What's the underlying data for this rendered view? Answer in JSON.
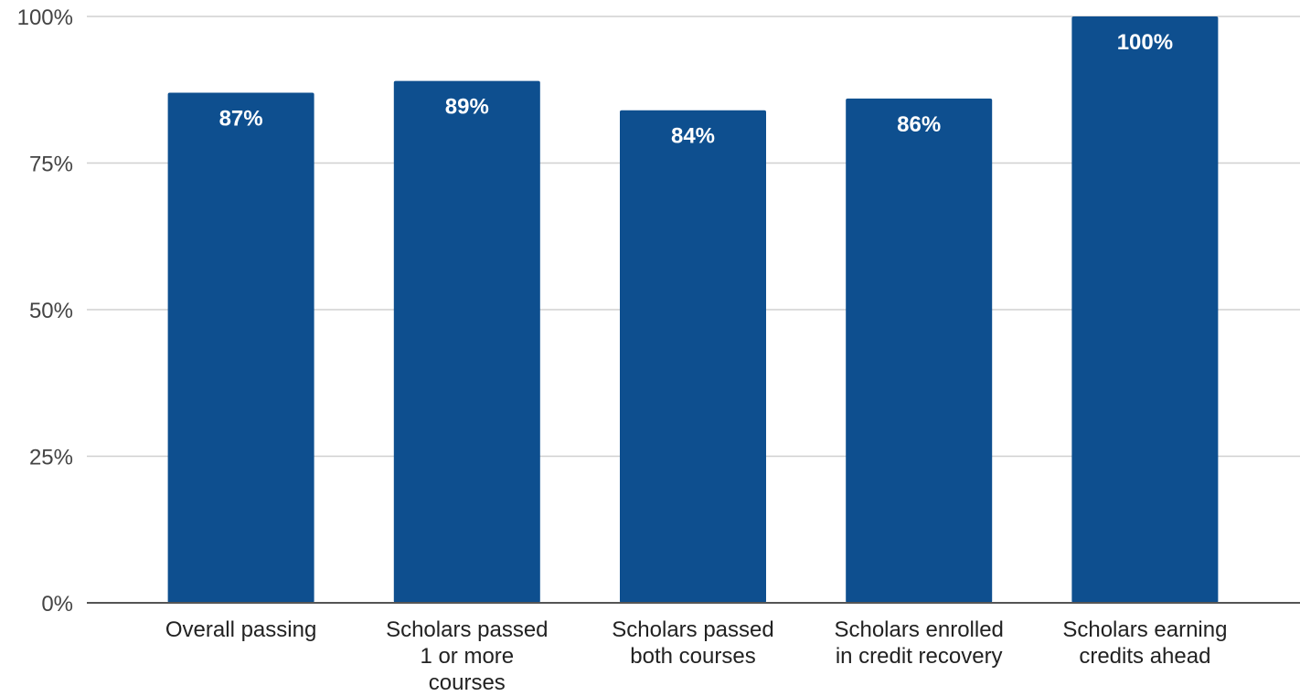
{
  "chart_data": {
    "type": "bar",
    "categories": [
      [
        "Overall passing"
      ],
      [
        "Scholars passed",
        "1 or more",
        "courses"
      ],
      [
        "Scholars passed",
        "both courses"
      ],
      [
        "Scholars enrolled",
        "in credit recovery"
      ],
      [
        "Scholars earning",
        "credits ahead"
      ]
    ],
    "values": [
      87,
      89,
      84,
      86,
      100
    ],
    "data_labels": [
      "87%",
      "89%",
      "84%",
      "86%",
      "100%"
    ],
    "yticks": [
      "0%",
      "25%",
      "50%",
      "75%",
      "100%"
    ],
    "ytick_values": [
      0,
      25,
      50,
      75,
      100
    ],
    "ylim": [
      0,
      100
    ],
    "grid": true,
    "bar_color": "#0e4f8f",
    "title": "",
    "xlabel": "",
    "ylabel": ""
  }
}
